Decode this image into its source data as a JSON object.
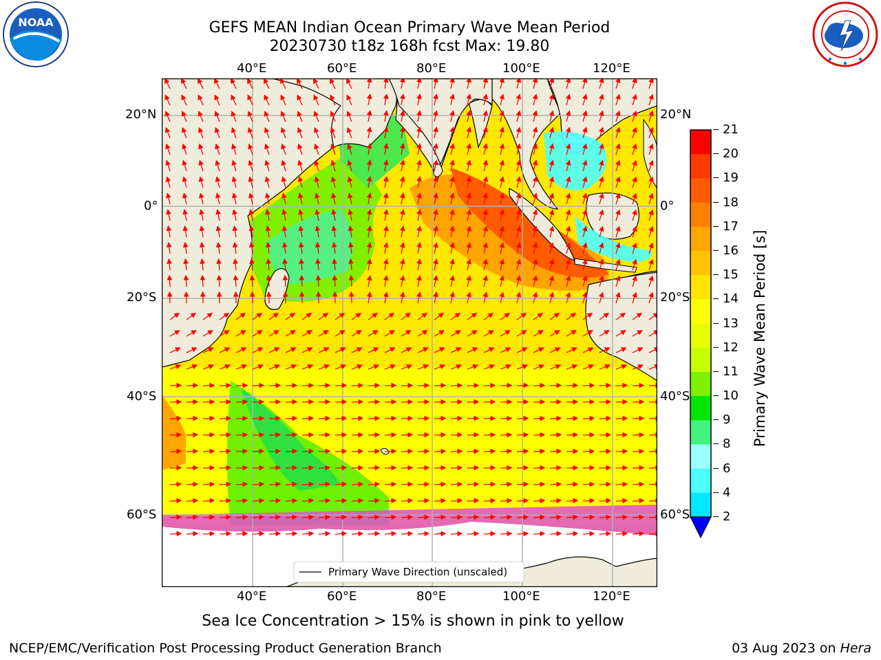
{
  "header": {
    "title_line1": "GEFS MEAN Indian Ocean Primary Wave Mean Period",
    "title_line2": "20230730 t18z 168h fcst   Max: 19.80"
  },
  "logos": {
    "left": {
      "name": "noaa-logo",
      "text": "NOAA",
      "ring_text": "NATIONAL OCEANIC AND ATMOSPHERIC ADMINISTRATION · U.S. DEPARTMENT OF COMMERCE"
    },
    "right": {
      "name": "nws-logo",
      "ring_text": "NATIONAL WEATHER SERVICE"
    }
  },
  "map": {
    "lon_labels": [
      "40°E",
      "60°E",
      "80°E",
      "100°E",
      "120°E"
    ],
    "lat_labels": [
      "20°N",
      "0°",
      "20°S",
      "40°S",
      "60°S"
    ],
    "legend_label": "Primary Wave Direction (unscaled)",
    "colors": {
      "ocean_long": "#ffe800",
      "ocean_mid": "#ffc000",
      "land": "#efecdb",
      "arrow": "#ff0000",
      "ice": "#ffffff"
    }
  },
  "colorbar": {
    "label": "Primary Wave Mean Period [s]",
    "ticks": [
      "21",
      "20",
      "19",
      "18",
      "17",
      "16",
      "15",
      "14",
      "13",
      "12",
      "11",
      "10",
      "9",
      "8",
      "6",
      "4",
      "2"
    ],
    "colors": [
      "#ff0000",
      "#ff3a00",
      "#ff5c00",
      "#ff8000",
      "#ffa500",
      "#ffc400",
      "#ffe600",
      "#ffff00",
      "#e6ff00",
      "#c8ff00",
      "#7ef000",
      "#00e600",
      "#44f27e",
      "#9bffff",
      "#4cffff",
      "#00e8ff",
      "#0078ff"
    ]
  },
  "footer": {
    "subtitle": "Sea Ice Concentration > 15% is shown in pink to yellow",
    "left": "NCEP/EMC/Verification Post Processing Product Generation Branch",
    "date": "03 Aug 2023 on ",
    "machine": "Hera"
  }
}
